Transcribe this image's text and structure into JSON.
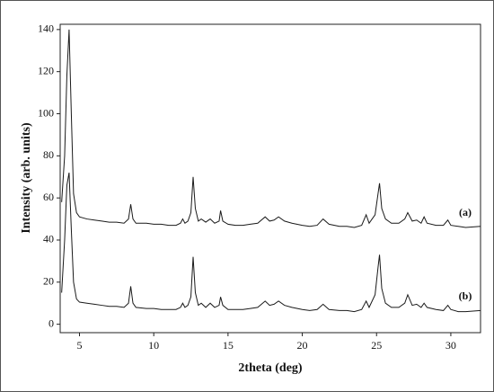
{
  "chart_data": {
    "type": "line",
    "x_label": "2theta (deg)",
    "y_label": "Intensity (arb. units)",
    "xlim": [
      3.7,
      32
    ],
    "ylim": [
      -4,
      142.5
    ],
    "xticks": [
      5,
      10,
      15,
      20,
      25,
      30
    ],
    "yticks": [
      0,
      20,
      40,
      60,
      80,
      100,
      120,
      140
    ],
    "grid": false,
    "annotations": [
      "(a)",
      "(b)"
    ],
    "x": [
      3.8,
      4.0,
      4.15,
      4.3,
      4.45,
      4.6,
      4.8,
      5.0,
      5.5,
      6,
      6.5,
      7,
      7.5,
      8,
      8.3,
      8.45,
      8.6,
      8.8,
      9.5,
      10,
      10.5,
      11,
      11.5,
      11.8,
      11.95,
      12.1,
      12.3,
      12.5,
      12.65,
      12.8,
      13,
      13.2,
      13.5,
      13.8,
      14.1,
      14.4,
      14.5,
      14.65,
      15,
      15.5,
      16,
      16.5,
      17,
      17.5,
      17.8,
      18.1,
      18.4,
      18.8,
      19.3,
      20,
      20.5,
      21,
      21.4,
      21.8,
      22.5,
      23,
      23.5,
      24,
      24.3,
      24.5,
      24.7,
      24.9,
      25.1,
      25.2,
      25.35,
      25.6,
      26,
      26.5,
      26.9,
      27.1,
      27.4,
      27.7,
      28,
      28.2,
      28.4,
      29,
      29.5,
      29.8,
      30,
      30.5,
      31,
      32
    ],
    "series": [
      {
        "color": "#1a1a1a",
        "values": [
          58,
          80,
          118,
          140,
          100,
          62,
          53,
          51,
          50,
          49.5,
          49,
          48.5,
          48.5,
          48,
          50,
          57,
          50,
          48,
          48,
          47.5,
          47.5,
          47,
          47,
          48,
          50,
          48,
          49,
          53,
          70,
          55,
          49,
          50,
          48.5,
          50,
          48,
          49,
          54,
          49,
          47.5,
          47,
          47,
          47.5,
          48,
          51,
          49,
          49.5,
          51,
          49,
          48,
          47,
          46.5,
          47,
          50,
          47.5,
          46.5,
          46.5,
          46,
          47,
          52,
          48,
          50,
          52,
          62,
          67,
          55,
          50,
          48,
          48,
          50,
          53,
          49,
          49.5,
          48,
          51,
          48,
          47,
          47,
          49.5,
          47,
          46.5,
          46,
          46.5
        ]
      },
      {
        "color": "#1a1a1a",
        "values": [
          15,
          40,
          66,
          72,
          45,
          20,
          12,
          10.5,
          10,
          9.5,
          9,
          8.5,
          8.5,
          8,
          10,
          18,
          10,
          8,
          7.5,
          7.5,
          7,
          7,
          7,
          8,
          10,
          8,
          9,
          13,
          32,
          15,
          9,
          10,
          8,
          10,
          8,
          9,
          13,
          9,
          7,
          7,
          7,
          7.5,
          8,
          11,
          9,
          9.5,
          11,
          9,
          8,
          7,
          6.5,
          7,
          9.5,
          7,
          6.5,
          6.5,
          6,
          7,
          11,
          8,
          11,
          14,
          27,
          33,
          17,
          10,
          8,
          8,
          10,
          14,
          9,
          9.5,
          8,
          10,
          8,
          7,
          6.5,
          9,
          7,
          6,
          6,
          6.5
        ]
      }
    ]
  }
}
